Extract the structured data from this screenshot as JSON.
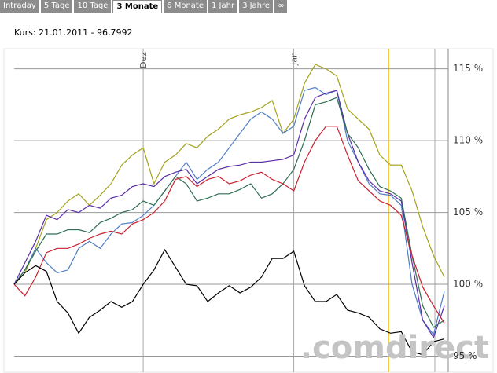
{
  "tabs": [
    "Intraday",
    "5 Tage",
    "10 Tage",
    "3 Monate",
    "6 Monate",
    "1 Jahr",
    "3 Jahre",
    "∞"
  ],
  "selected_tab": 3,
  "quote": "Kurs: 21.01.2011 - 96,7992",
  "watermark": ".comdirect",
  "chart_data": {
    "type": "line",
    "categories": [
      null,
      null,
      null,
      null,
      null,
      null,
      null,
      null,
      null,
      null,
      null,
      null,
      "Dez",
      null,
      null,
      null,
      null,
      null,
      null,
      null,
      null,
      null,
      null,
      null,
      null,
      null,
      "Jan",
      null,
      null,
      null,
      null,
      null,
      null,
      null,
      null,
      null,
      null,
      null,
      null,
      null,
      null
    ],
    "ylim": [
      94.1,
      116.4
    ],
    "yticks": [
      {
        "value": 95,
        "label": "95 %"
      },
      {
        "value": 100,
        "label": "100 %"
      },
      {
        "value": 105,
        "label": "105 %"
      },
      {
        "value": 110,
        "label": "110 %"
      },
      {
        "value": 115,
        "label": "115 %"
      }
    ],
    "grid": true,
    "series": [
      {
        "color": "#a3a21c",
        "values": [
          100.0,
          100.8,
          102.5,
          104.5,
          105.0,
          105.8,
          106.3,
          105.5,
          106.2,
          107.0,
          108.3,
          109.0,
          109.5,
          107.0,
          108.5,
          109.0,
          109.8,
          109.5,
          110.3,
          110.8,
          111.5,
          111.8,
          112.0,
          112.3,
          112.8,
          110.5,
          111.5,
          114.0,
          115.3,
          115.0,
          114.5,
          112.2,
          111.5,
          110.8,
          109.0,
          108.3,
          108.3,
          106.5,
          104.0,
          102.0,
          100.5
        ]
      },
      {
        "color": "#4f7fc4",
        "values": [
          100.0,
          101.0,
          102.5,
          101.5,
          100.8,
          101.0,
          102.5,
          103.0,
          102.5,
          103.5,
          104.2,
          104.3,
          104.8,
          105.5,
          106.5,
          107.5,
          108.5,
          107.3,
          108.0,
          108.5,
          109.5,
          110.5,
          111.5,
          112.0,
          111.5,
          110.5,
          111.0,
          113.5,
          113.7,
          113.2,
          113.5,
          110.0,
          108.5,
          107.0,
          106.3,
          106.2,
          105.5,
          100.0,
          97.5,
          96.5,
          99.5
        ]
      },
      {
        "color": "#5a2ea6",
        "values": [
          100.0,
          101.5,
          103.0,
          104.8,
          104.5,
          105.2,
          105.0,
          105.5,
          105.3,
          106.0,
          106.2,
          106.8,
          107.0,
          106.8,
          107.5,
          107.8,
          108.0,
          107.0,
          107.5,
          108.0,
          108.2,
          108.3,
          108.5,
          108.5,
          108.6,
          108.7,
          109.0,
          111.5,
          113.0,
          113.3,
          113.5,
          110.5,
          108.5,
          107.2,
          106.5,
          106.3,
          105.8,
          101.5,
          97.5,
          96.3,
          98.5
        ]
      },
      {
        "color": "#2f6e52",
        "values": [
          100.0,
          101.0,
          102.3,
          103.5,
          103.5,
          103.8,
          103.8,
          103.6,
          104.3,
          104.6,
          105.0,
          105.2,
          105.8,
          105.5,
          106.5,
          107.5,
          107.0,
          105.8,
          106.0,
          106.3,
          106.3,
          106.6,
          107.0,
          106.0,
          106.3,
          107.0,
          108.0,
          110.0,
          112.5,
          112.7,
          113.0,
          110.5,
          109.5,
          108.0,
          106.8,
          106.5,
          106.0,
          102.0,
          98.5,
          97.0,
          97.5
        ]
      },
      {
        "color": "#c8202f",
        "values": [
          100.0,
          99.2,
          100.5,
          102.2,
          102.5,
          102.5,
          102.8,
          103.2,
          103.5,
          103.7,
          103.5,
          104.2,
          104.5,
          105.0,
          105.8,
          107.3,
          107.5,
          106.8,
          107.3,
          107.5,
          107.0,
          107.2,
          107.6,
          107.8,
          107.3,
          107.0,
          106.5,
          108.5,
          110.0,
          111.0,
          111.0,
          109.0,
          107.2,
          106.5,
          105.8,
          105.5,
          104.8,
          102.0,
          99.8,
          98.5,
          97.3
        ]
      },
      {
        "color": "#000000",
        "values": [
          100.0,
          100.8,
          101.3,
          100.9,
          98.8,
          98.0,
          96.6,
          97.7,
          98.2,
          98.8,
          98.4,
          98.8,
          100.0,
          101.0,
          102.4,
          101.2,
          100.0,
          99.9,
          98.8,
          99.4,
          99.9,
          99.4,
          99.8,
          100.5,
          101.8,
          101.8,
          102.3,
          99.9,
          98.8,
          98.8,
          99.3,
          98.2,
          98.0,
          97.7,
          96.9,
          96.6,
          96.7,
          95.3,
          95.1,
          96.0,
          96.2
        ]
      }
    ]
  }
}
